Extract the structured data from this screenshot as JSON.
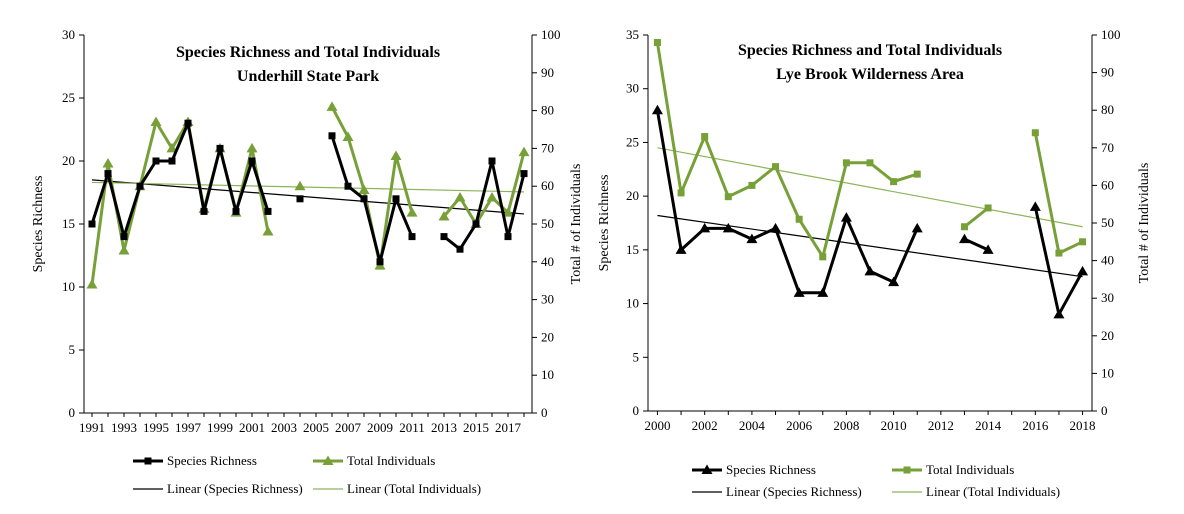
{
  "chart_data": [
    {
      "type": "line",
      "title": [
        "Species Richness and  Total Individuals",
        "Underhill  State Park"
      ],
      "x": [
        1991,
        1992,
        1993,
        1994,
        1995,
        1996,
        1997,
        1998,
        1999,
        2000,
        2001,
        2002,
        2003,
        2004,
        2005,
        2006,
        2007,
        2008,
        2009,
        2010,
        2011,
        2012,
        2013,
        2014,
        2015,
        2016,
        2017,
        2018
      ],
      "xticks": [
        1991,
        1993,
        1995,
        1997,
        1999,
        2001,
        2003,
        2005,
        2007,
        2009,
        2011,
        2013,
        2015,
        2017
      ],
      "xlim": [
        1990.5,
        2018.5
      ],
      "ylabel": "Species  Richness",
      "ylim": [
        0,
        30
      ],
      "yticks": [
        0,
        5,
        10,
        15,
        20,
        25,
        30
      ],
      "y2label": "Total # of Individuals",
      "y2lim": [
        0,
        100
      ],
      "y2ticks": [
        0,
        10,
        20,
        30,
        40,
        50,
        60,
        70,
        80,
        90,
        100
      ],
      "series": [
        {
          "name": "Species Richness",
          "axis": "left",
          "marker": "square",
          "color": "#000000",
          "values": [
            15,
            19,
            14,
            18,
            20,
            20,
            23,
            16,
            21,
            16,
            20,
            16,
            null,
            17,
            null,
            22,
            18,
            17,
            12,
            17,
            14,
            null,
            14,
            13,
            15,
            20,
            14,
            19
          ]
        },
        {
          "name": "Total Individuals",
          "axis": "right",
          "marker": "triangle",
          "color": "#77a038",
          "values": [
            34,
            66,
            43,
            60,
            77,
            70,
            77,
            54,
            70,
            53,
            70,
            48,
            null,
            60,
            null,
            81,
            73,
            59,
            39,
            68,
            53,
            null,
            52,
            57,
            50,
            57,
            53,
            69
          ]
        }
      ],
      "trendlines": [
        {
          "name": "Linear (Species Richness)",
          "axis": "left",
          "color": "#000000",
          "from": [
            1991,
            18.5
          ],
          "to": [
            2018,
            15.8
          ]
        },
        {
          "name": "Linear (Total Individuals)",
          "axis": "right",
          "color": "#8cb55a",
          "from": [
            1991,
            61
          ],
          "to": [
            2018,
            58.5
          ]
        }
      ]
    },
    {
      "type": "line",
      "title": [
        "Species Richness and  Total Individuals",
        "Lye Brook Wilderness Area"
      ],
      "x": [
        2000,
        2001,
        2002,
        2003,
        2004,
        2005,
        2006,
        2007,
        2008,
        2009,
        2010,
        2011,
        2012,
        2013,
        2014,
        2015,
        2016,
        2017,
        2018
      ],
      "xticks": [
        2000,
        2002,
        2004,
        2006,
        2008,
        2010,
        2012,
        2014,
        2016,
        2018
      ],
      "xlim": [
        1999.6,
        2018.4
      ],
      "ylabel": "Species Richness",
      "ylim": [
        0,
        35
      ],
      "yticks": [
        0,
        5,
        10,
        15,
        20,
        25,
        30,
        35
      ],
      "y2label": "Total # of Individuals",
      "y2lim": [
        0,
        100
      ],
      "y2ticks": [
        0,
        10,
        20,
        30,
        40,
        50,
        60,
        70,
        80,
        90,
        100
      ],
      "series": [
        {
          "name": "Species Richness",
          "axis": "left",
          "marker": "triangle",
          "color": "#000000",
          "values": [
            28,
            15,
            17,
            17,
            16,
            17,
            11,
            11,
            18,
            13,
            12,
            17,
            null,
            16,
            15,
            null,
            19,
            9,
            13
          ]
        },
        {
          "name": "Total Individuals",
          "axis": "right",
          "marker": "square",
          "color": "#77a038",
          "values": [
            98,
            58,
            73,
            57,
            60,
            65,
            51,
            41,
            66,
            66,
            61,
            63,
            null,
            49,
            54,
            null,
            74,
            42,
            45
          ]
        }
      ],
      "trendlines": [
        {
          "name": "Linear (Species Richness)",
          "axis": "left",
          "color": "#000000",
          "from": [
            2000,
            18.2
          ],
          "to": [
            2018,
            12.5
          ]
        },
        {
          "name": "Linear (Total Individuals)",
          "axis": "right",
          "color": "#8cb55a",
          "from": [
            2000,
            70
          ],
          "to": [
            2018,
            49
          ]
        }
      ]
    }
  ]
}
